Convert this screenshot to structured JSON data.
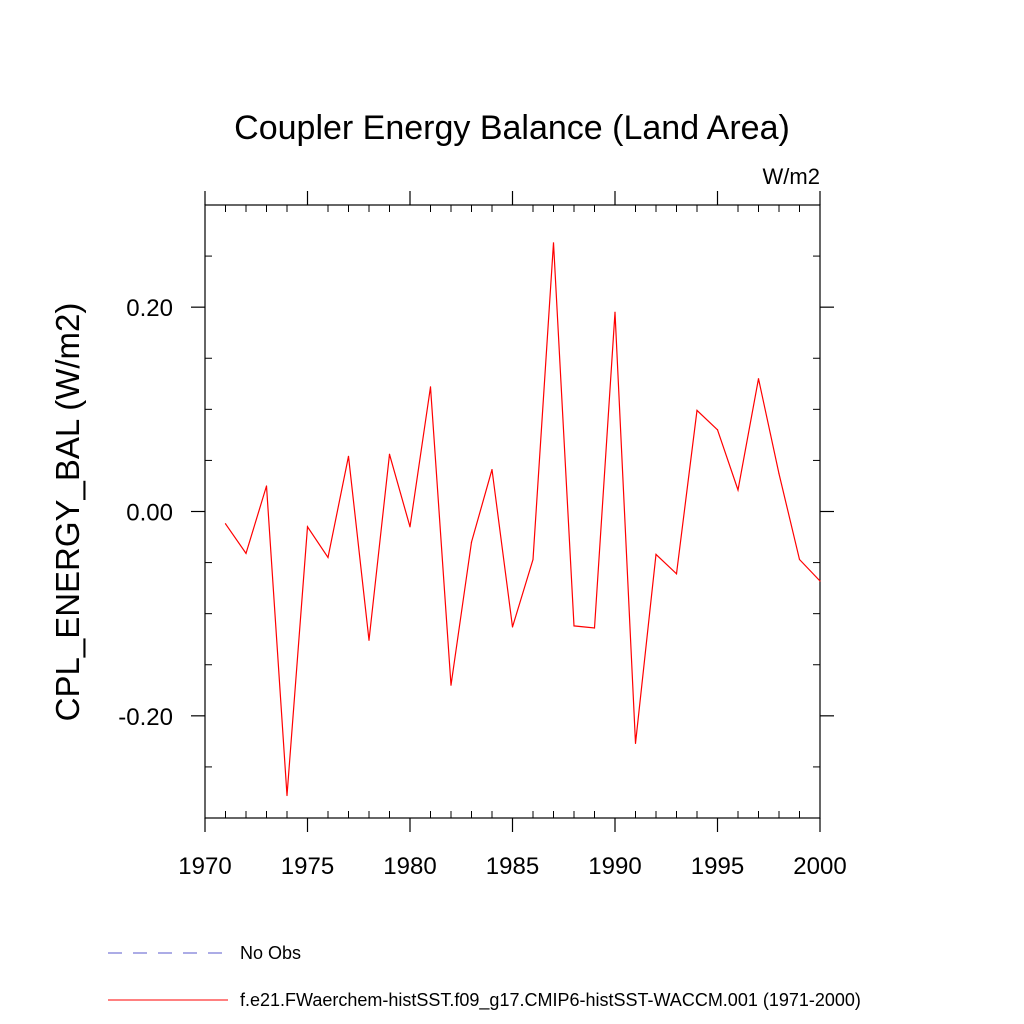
{
  "chart_data": {
    "type": "line",
    "title": "Coupler Energy Balance (Land Area)",
    "units": "W/m2",
    "ylabel": "CPL_ENERGY_BAL  (W/m2)",
    "xlabel": "",
    "xlim": [
      1970,
      2000
    ],
    "ylim": [
      -0.3,
      0.3
    ],
    "x_ticks": [
      1970,
      1975,
      1980,
      1985,
      1990,
      1995,
      2000
    ],
    "x_tick_labels": [
      "1970",
      "1975",
      "1980",
      "1985",
      "1990",
      "1995",
      "2000"
    ],
    "y_ticks": [
      -0.2,
      0.0,
      0.2
    ],
    "y_tick_labels": [
      "-0.20",
      "0.00",
      "0.20"
    ],
    "grid": false,
    "legend_position": "bottom",
    "series": [
      {
        "name": "f.e21.FWaerchem-histSST.f09_g17.CMIP6-histSST-WACCM.001 (1971-2000)",
        "color": "#ff0000",
        "style": "solid",
        "x": [
          1971,
          1972,
          1973,
          1974,
          1975,
          1976,
          1977,
          1978,
          1979,
          1980,
          1981,
          1982,
          1983,
          1984,
          1985,
          1986,
          1987,
          1988,
          1989,
          1990,
          1991,
          1992,
          1993,
          1994,
          1995,
          1996,
          1997,
          1998,
          1999,
          2000
        ],
        "y": [
          -0.012,
          -0.041,
          0.025,
          -0.278,
          -0.015,
          -0.045,
          0.054,
          -0.126,
          0.056,
          -0.015,
          0.122,
          -0.17,
          -0.03,
          0.041,
          -0.113,
          -0.047,
          0.263,
          -0.112,
          -0.114,
          0.195,
          -0.227,
          -0.042,
          -0.061,
          0.099,
          0.08,
          0.021,
          0.13,
          0.037,
          -0.047,
          -0.068
        ]
      },
      {
        "name": "No Obs",
        "color": "#5a5acd",
        "style": "dashed",
        "x": [],
        "y": []
      }
    ]
  }
}
